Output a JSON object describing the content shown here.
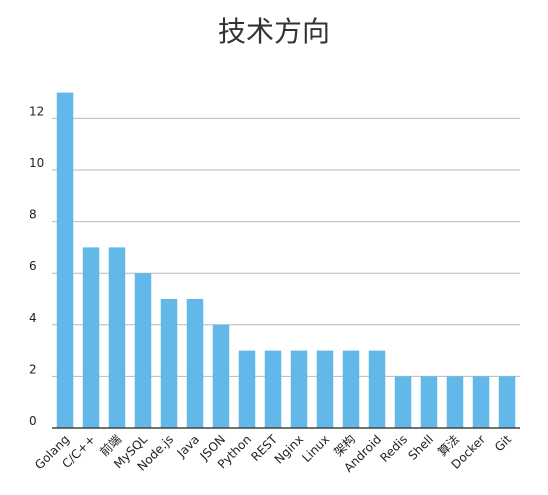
{
  "chart_data": {
    "type": "bar",
    "title": "技术方向",
    "xlabel": "",
    "ylabel": "",
    "categories": [
      "Golang",
      "C/C++",
      "前端",
      "MySQL",
      "Node.js",
      "Java",
      "JSON",
      "Python",
      "REST",
      "Nginx",
      "Linux",
      "架构",
      "Android",
      "Redis",
      "Shell",
      "算法",
      "Docker",
      "Git"
    ],
    "values": [
      13,
      7,
      7,
      6,
      5,
      5,
      4,
      3,
      3,
      3,
      3,
      3,
      3,
      2,
      2,
      2,
      2,
      2
    ],
    "ylim": [
      0,
      13
    ],
    "yticks": [
      0,
      2,
      4,
      6,
      8,
      10,
      12
    ],
    "grid": true,
    "legend": "none",
    "colors": {
      "bar": "#62b8e8",
      "grid": "#b8b8b8",
      "axis": "#444444"
    }
  }
}
